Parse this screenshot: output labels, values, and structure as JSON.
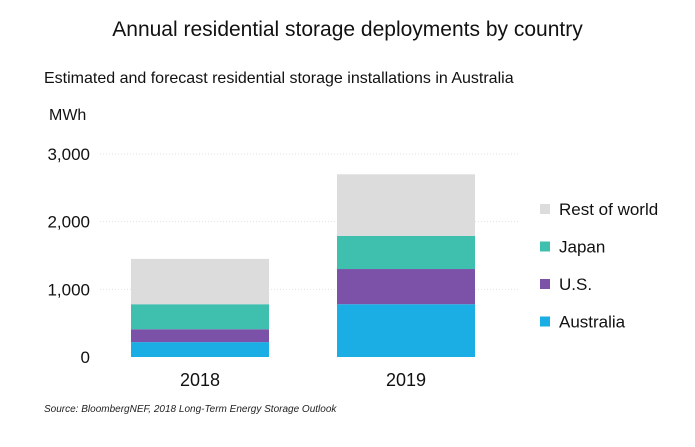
{
  "chart_data": {
    "type": "bar",
    "stacked": true,
    "title": "Annual residential storage deployments by country",
    "subtitle": "Estimated and forecast residential storage installations in Australia",
    "ylabel": "MWh",
    "xlabel": "",
    "categories": [
      "2018",
      "2019"
    ],
    "ylim": [
      0,
      3000
    ],
    "yticks": [
      0,
      1000,
      2000,
      3000
    ],
    "ytick_labels": [
      "0",
      "1,000",
      "2,000",
      "3,000"
    ],
    "grid": true,
    "legend_position": "right",
    "series": [
      {
        "name": "Australia",
        "color": "#1aaee5",
        "values": [
          220,
          780
        ]
      },
      {
        "name": "U.S.",
        "color": "#7b52a8",
        "values": [
          190,
          520
        ]
      },
      {
        "name": "Japan",
        "color": "#3fbfae",
        "values": [
          370,
          490
        ]
      },
      {
        "name": "Rest of world",
        "color": "#dcdcdc",
        "values": [
          670,
          910
        ]
      }
    ]
  },
  "source": "Source: BloombergNEF, 2018 Long-Term Energy Storage Outlook"
}
